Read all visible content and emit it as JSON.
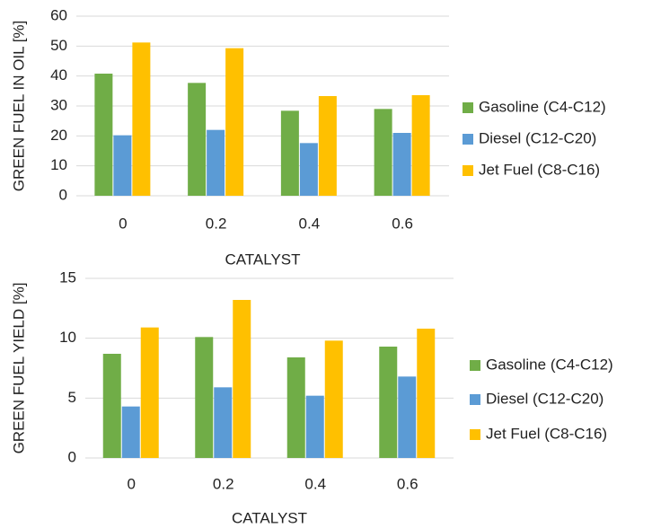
{
  "chart_data": [
    {
      "type": "bar",
      "categories": [
        "0",
        "0.2",
        "0.4",
        "0.6"
      ],
      "series": [
        {
          "name": "Gasoline (C4-C12)",
          "color": "#70ad47",
          "values": [
            40.8,
            37.7,
            28.4,
            29
          ]
        },
        {
          "name": "Diesel (C12-C20)",
          "color": "#5b9bd5",
          "values": [
            20.2,
            22,
            17.6,
            21
          ]
        },
        {
          "name": "Jet Fuel (C8-C16)",
          "color": "#ffc000",
          "values": [
            51.2,
            49.3,
            33.3,
            33.6
          ]
        }
      ],
      "x_label": "CATALYST",
      "y_label": "GREEN FUEL IN OIL [%]",
      "ylim": [
        0,
        60
      ],
      "yticks": [
        0,
        10,
        20,
        30,
        40,
        50,
        60
      ],
      "grid": true,
      "legend": "right"
    },
    {
      "type": "bar",
      "categories": [
        "0",
        "0.2",
        "0.4",
        "0.6"
      ],
      "series": [
        {
          "name": "Gasoline (C4-C12)",
          "color": "#70ad47",
          "values": [
            8.7,
            10.1,
            8.4,
            9.3
          ]
        },
        {
          "name": "Diesel (C12-C20)",
          "color": "#5b9bd5",
          "values": [
            4.3,
            5.9,
            5.2,
            6.8
          ]
        },
        {
          "name": "Jet Fuel (C8-C16)",
          "color": "#ffc000",
          "values": [
            10.9,
            13.2,
            9.8,
            10.8
          ]
        }
      ],
      "x_label": "CATALYST",
      "y_label": "GREEN FUEL YIELD [%]",
      "ylim": [
        0,
        15
      ],
      "yticks": [
        0,
        5,
        10,
        15
      ],
      "grid": true,
      "legend": "right"
    }
  ]
}
